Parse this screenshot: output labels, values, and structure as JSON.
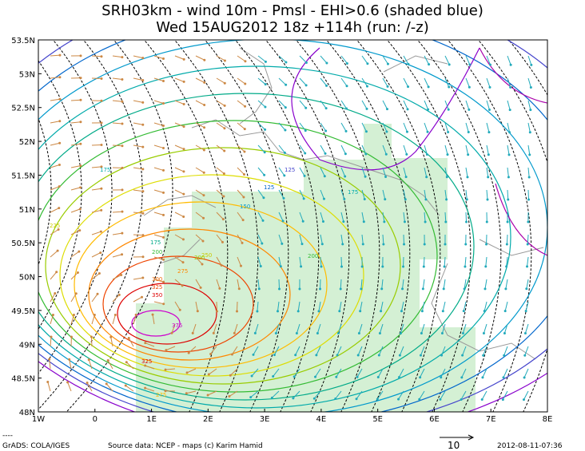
{
  "header": {
    "title_line1": "SRH03km - wind 10m - Pmsl - EHI>0.6 (shaded blue)",
    "title_line2": "Wed 15AUG2012 18z  +114h (run: /-z)"
  },
  "map": {
    "lat_labels": [
      "53.5N",
      "53N",
      "52.5N",
      "52N",
      "51.5N",
      "51N",
      "50.5N",
      "50N",
      "49.5N",
      "49N",
      "48.5N",
      "48N"
    ],
    "lon_labels": [
      "1W",
      "0",
      "1E",
      "2E",
      "3E",
      "4E",
      "5E",
      "6E",
      "7E",
      "8E"
    ],
    "contour_labels": [
      "175",
      "225",
      "200",
      "250",
      "275",
      "300",
      "325",
      "350",
      "375",
      "325",
      "275",
      "175",
      "200",
      "150",
      "125",
      "175",
      "200",
      "125"
    ]
  },
  "footer": {
    "credit": "GrADS: COLA/IGES",
    "source": "Source data: NCEP - maps (c) Karim Hamid",
    "scale": "10",
    "timestamp": "2012-08-11-07:36"
  }
}
